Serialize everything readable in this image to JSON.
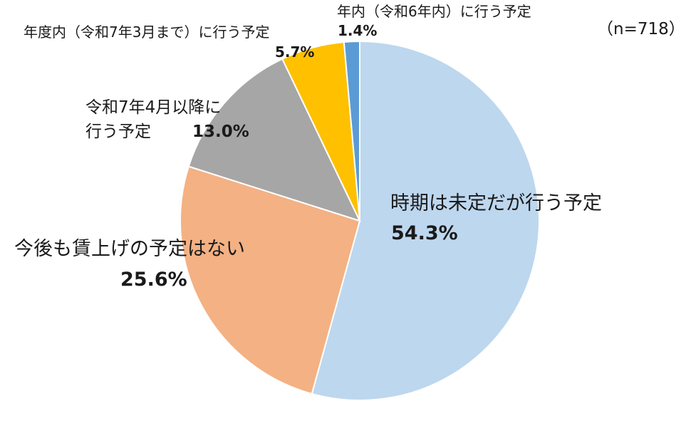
{
  "chart_data": {
    "type": "pie",
    "sample_size": "（n=718）",
    "slices": [
      {
        "category": "時期は未定だが行う予定",
        "value": 54.3,
        "value_label": "54.3%",
        "color": "#BDD7EE"
      },
      {
        "category": "今後も賃上げの予定はない",
        "value": 25.6,
        "value_label": "25.6%",
        "color": "#F4B183"
      },
      {
        "category_lines": [
          "令和7年4月以降に",
          "行う予定"
        ],
        "category": "令和7年4月以降に行う予定",
        "value": 13.0,
        "value_label": "13.0%",
        "color": "#A6A6A6"
      },
      {
        "category": "年度内（令和7年3月まで）に行う予定",
        "value": 5.7,
        "value_label": "5.7%",
        "color": "#FFC000"
      },
      {
        "category": "年内（令和6年内）に行う予定",
        "value": 1.4,
        "value_label": "1.4%",
        "color": "#5B9BD5"
      }
    ]
  }
}
